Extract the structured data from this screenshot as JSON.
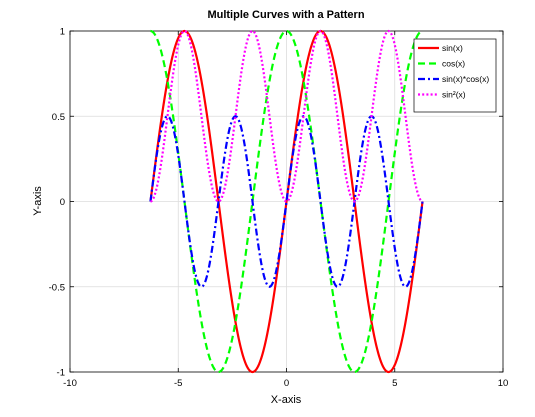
{
  "chart_data": {
    "type": "line",
    "title": "Multiple Curves with a Pattern",
    "xlabel": "X-axis",
    "ylabel": "Y-axis",
    "xlim": [
      -10,
      10
    ],
    "ylim": [
      -1,
      1
    ],
    "xticks": [
      -10,
      -5,
      0,
      5,
      10
    ],
    "xtick_labels": [
      "-10",
      "-5",
      "0",
      "5",
      "10"
    ],
    "yticks": [
      -1,
      -0.5,
      0,
      0.5,
      1
    ],
    "ytick_labels": [
      "-1",
      "-0.5",
      "0",
      "0.5",
      "1"
    ],
    "grid": true,
    "legend_position": "top-right",
    "x_domain": [
      -6.2832,
      6.2832
    ],
    "series": [
      {
        "name": "sin(x)",
        "function": "sin(x)",
        "color": "#ff0000",
        "style": "solid"
      },
      {
        "name": "cos(x)",
        "function": "cos(x)",
        "color": "#00ff00",
        "style": "dashed"
      },
      {
        "name": "sin(x)*cos(x)",
        "function": "sin(x)*cos(x)",
        "color": "#0000ff",
        "style": "dashdot"
      },
      {
        "name": "sin²(x)",
        "function": "sin(x)^2",
        "color": "#ff00ff",
        "style": "dotted"
      }
    ]
  }
}
